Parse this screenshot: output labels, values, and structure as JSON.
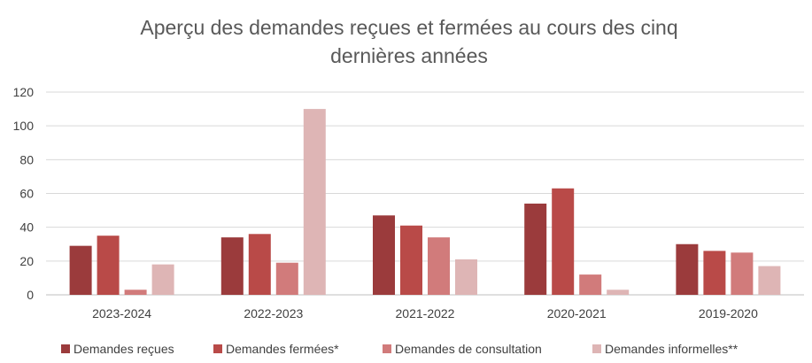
{
  "chart_data": {
    "type": "bar",
    "title": "Aperçu des demandes reçues et fermées au cours des cinq dernières années",
    "title_lines": [
      "Aperçu des demandes reçues et fermées au cours des cinq",
      "dernières années"
    ],
    "categories": [
      "2023-2024",
      "2022-2023",
      "2021-2022",
      "2020-2021",
      "2019-2020"
    ],
    "series": [
      {
        "name": "Demandes reçues",
        "color": "#9b3b3c",
        "values": [
          29,
          34,
          47,
          54,
          30
        ]
      },
      {
        "name": "Demandes fermées*",
        "color": "#b94a48",
        "values": [
          35,
          36,
          41,
          63,
          26
        ]
      },
      {
        "name": "Demandes de consultation",
        "color": "#d17b7b",
        "values": [
          3,
          19,
          34,
          12,
          25
        ]
      },
      {
        "name": "Demandes informelles**",
        "color": "#deb5b5",
        "values": [
          18,
          110,
          21,
          3,
          17
        ]
      }
    ],
    "ylim": [
      0,
      120
    ],
    "yticks": [
      "0",
      "20",
      "40",
      "60",
      "80",
      "100",
      "120"
    ],
    "xlabel": "",
    "ylabel": "",
    "grid": true,
    "legend_position": "bottom"
  }
}
